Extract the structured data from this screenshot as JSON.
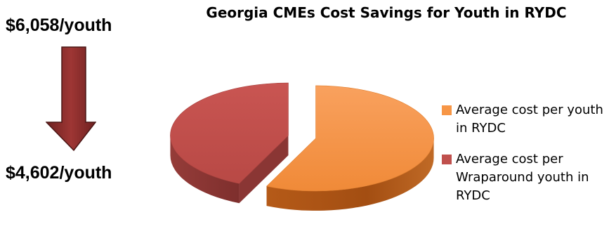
{
  "callouts": {
    "before": "$6,058/youth",
    "after": "$4,602/youth"
  },
  "colors": {
    "orange": "#f79646",
    "red": "#c0504d",
    "arrow": "#8b2e2c"
  },
  "chart_data": {
    "type": "pie",
    "title": "Georgia CMEs Cost Savings for Youth in RYDC",
    "style": "3d-exploded",
    "series": [
      {
        "name": "Average cost per youth in RYDC",
        "value": 6058,
        "color": "#f79646"
      },
      {
        "name": "Average cost per Wraparound youth in RYDC",
        "value": 4602,
        "color": "#c0504d"
      }
    ],
    "legend_position": "right"
  }
}
